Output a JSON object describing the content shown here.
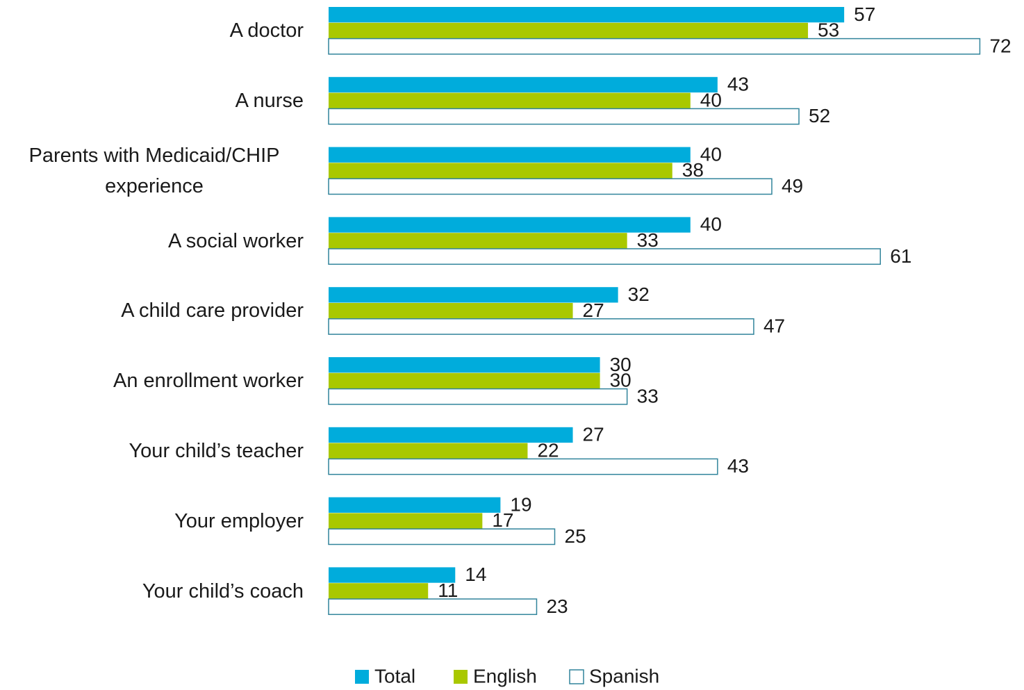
{
  "chart_data": {
    "type": "bar",
    "orientation": "horizontal",
    "categories": [
      "A doctor",
      "A nurse",
      "Parents with Medicaid/CHIP experience",
      "A social worker",
      "A child care provider",
      "An enrollment worker",
      "Your child’s teacher",
      "Your employer",
      "Your child’s coach"
    ],
    "series": [
      {
        "name": "Total",
        "color": "#00acdc",
        "values": [
          57,
          43,
          40,
          40,
          32,
          30,
          27,
          19,
          14
        ]
      },
      {
        "name": "English",
        "color": "#a9c800",
        "values": [
          53,
          40,
          38,
          33,
          27,
          30,
          22,
          17,
          11
        ]
      },
      {
        "name": "Spanish",
        "color": "#ffffff",
        "values": [
          72,
          52,
          49,
          61,
          47,
          33,
          43,
          25,
          23
        ]
      }
    ],
    "legend": "bottom"
  }
}
